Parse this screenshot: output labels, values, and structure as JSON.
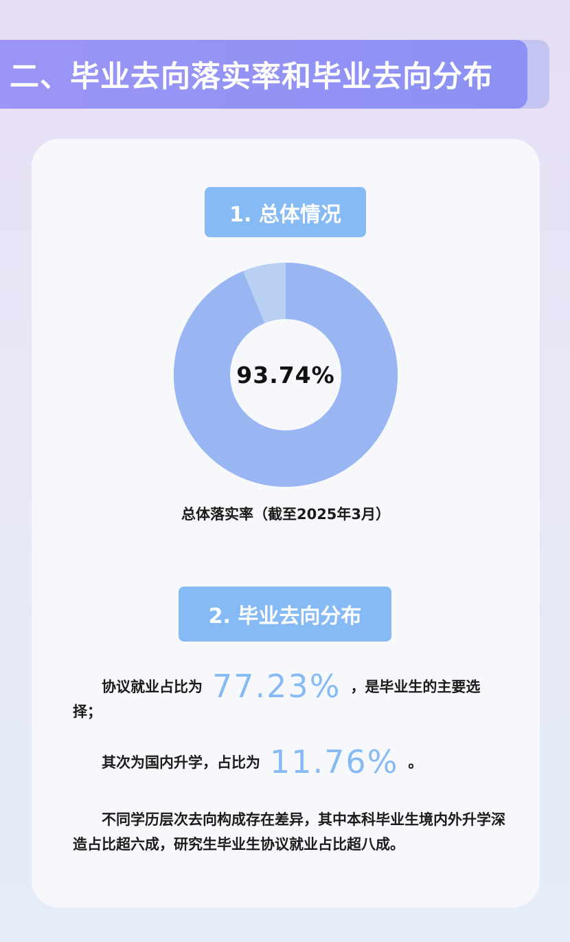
{
  "banner": {
    "title": "二、毕业去向落实率和毕业去向分布"
  },
  "section1": {
    "heading": "1. 总体情况",
    "rate_text": "93.74%",
    "rate_fraction": 0.9374,
    "caption": "总体落实率（截至2025年3月）",
    "colors": {
      "main": "#9ab6f2",
      "rest": "#b7d0f4"
    }
  },
  "section2": {
    "heading": "2. 毕业去向分布",
    "para1": {
      "lead": "协议就业占比为",
      "value": "77.23%",
      "tail": "，是毕业生的主要选择；"
    },
    "para2": {
      "lead": "其次为国内升学，占比为",
      "value": "11.76%",
      "tail": "。"
    },
    "para3": "不同学历层次去向构成存在差异，其中本科毕业生境内外升学深造占比超六成，研究生毕业生协议就业占比超八成。"
  },
  "colors": {
    "banner": "#8f93f4",
    "pill": "#86baf5",
    "accent_number": "#86baf5"
  }
}
